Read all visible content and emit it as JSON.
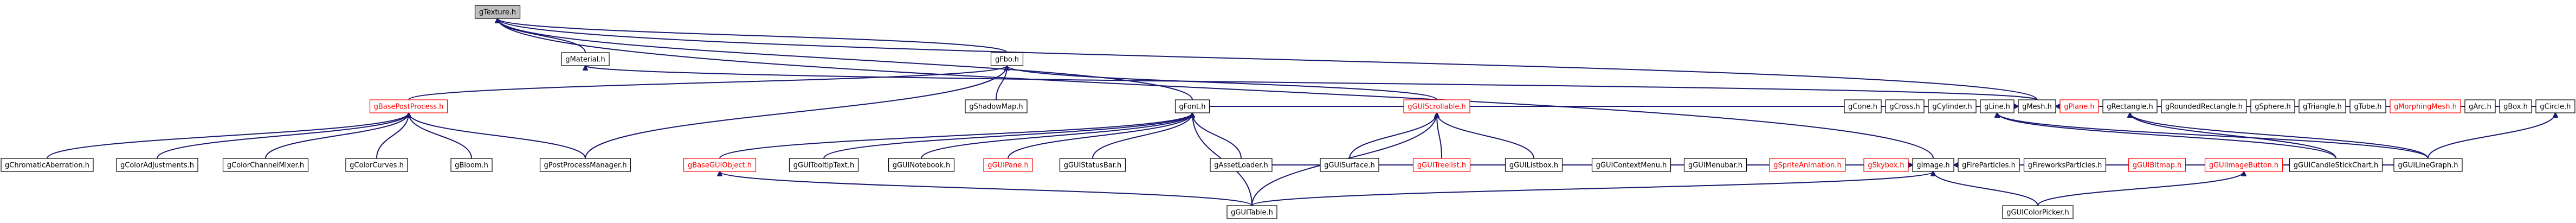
{
  "nodes": [
    {
      "id": "gTexture",
      "label": "gTexture.h",
      "root": true
    },
    {
      "id": "gFbo",
      "label": "gFbo.h"
    },
    {
      "id": "gMaterial",
      "label": "gMaterial.h"
    },
    {
      "id": "gBasePostProcess",
      "label": "gBasePostProcess.h",
      "red": true
    },
    {
      "id": "gShadowMap",
      "label": "gShadowMap.h"
    },
    {
      "id": "gFont",
      "label": "gFont.h"
    },
    {
      "id": "gGUIScrollable",
      "label": "gGUIScrollable.h",
      "red": true
    },
    {
      "id": "gMesh",
      "label": "gMesh.h"
    },
    {
      "id": "gImage",
      "label": "gImage.h"
    },
    {
      "id": "gChromaticAberration",
      "label": "gChromaticAberration.h"
    },
    {
      "id": "gColorAdjustments",
      "label": "gColorAdjustments.h"
    },
    {
      "id": "gColorChannelMixer",
      "label": "gColorChannelMixer.h"
    },
    {
      "id": "gColorCurves",
      "label": "gColorCurves.h"
    },
    {
      "id": "gBloom",
      "label": "gBloom.h"
    },
    {
      "id": "gPostProcessManager",
      "label": "gPostProcessManager.h"
    },
    {
      "id": "gBaseGUIObject",
      "label": "gBaseGUIObject.h",
      "red": true
    },
    {
      "id": "gGUITooltipText",
      "label": "gGUITooltipText.h"
    },
    {
      "id": "gGUINotebook",
      "label": "gGUINotebook.h"
    },
    {
      "id": "gGUIPane",
      "label": "gGUIPane.h",
      "red": true
    },
    {
      "id": "gGUIStatusBar",
      "label": "gGUIStatusBar.h"
    },
    {
      "id": "gAssetLoader",
      "label": "gAssetLoader.h"
    },
    {
      "id": "gGUISurface",
      "label": "gGUISurface.h"
    },
    {
      "id": "gGUITreelist",
      "label": "gGUITreelist.h",
      "red": true
    },
    {
      "id": "gGUIListbox",
      "label": "gGUIListbox.h"
    },
    {
      "id": "gGUIContextMenu",
      "label": "gGUIContextMenu.h"
    },
    {
      "id": "gGUIMenubar",
      "label": "gGUIMenubar.h"
    },
    {
      "id": "gSpriteAnimation",
      "label": "gSpriteAnimation.h",
      "red": true
    },
    {
      "id": "gSkybox",
      "label": "gSkybox.h",
      "red": true
    },
    {
      "id": "gFireParticles",
      "label": "gFireParticles.h"
    },
    {
      "id": "gFireworksParticles",
      "label": "gFireworksParticles.h"
    },
    {
      "id": "gGUIBitmap",
      "label": "gGUIBitmap.h",
      "red": true
    },
    {
      "id": "gGUIImageButton",
      "label": "gGUIImageButton.h",
      "red": true
    },
    {
      "id": "gGUICandleStickChart",
      "label": "gGUICandleStickChart.h"
    },
    {
      "id": "gGUILineGraph",
      "label": "gGUILineGraph.h"
    },
    {
      "id": "gGUITable",
      "label": "gGUITable.h"
    },
    {
      "id": "gGUIColorPicker",
      "label": "gGUIColorPicker.h"
    },
    {
      "id": "gCone",
      "label": "gCone.h"
    },
    {
      "id": "gCross",
      "label": "gCross.h"
    },
    {
      "id": "gCylinder",
      "label": "gCylinder.h"
    },
    {
      "id": "gLine",
      "label": "gLine.h"
    },
    {
      "id": "gPlane",
      "label": "gPlane.h",
      "red": true
    },
    {
      "id": "gRectangle",
      "label": "gRectangle.h"
    },
    {
      "id": "gRoundedRectangle",
      "label": "gRoundedRectangle.h"
    },
    {
      "id": "gSphere",
      "label": "gSphere.h"
    },
    {
      "id": "gTriangle",
      "label": "gTriangle.h"
    },
    {
      "id": "gTube",
      "label": "gTube.h"
    },
    {
      "id": "gMorphingMesh",
      "label": "gMorphingMesh.h",
      "red": true
    },
    {
      "id": "gArc",
      "label": "gArc.h"
    },
    {
      "id": "gBox",
      "label": "gBox.h"
    },
    {
      "id": "gCircle",
      "label": "gCircle.h"
    }
  ],
  "edges": [
    [
      "gTexture",
      "gFbo"
    ],
    [
      "gTexture",
      "gMaterial"
    ],
    [
      "gTexture",
      "gFont"
    ],
    [
      "gTexture",
      "gMesh"
    ],
    [
      "gTexture",
      "gImage"
    ],
    [
      "gFbo",
      "gBasePostProcess"
    ],
    [
      "gFbo",
      "gShadowMap"
    ],
    [
      "gFbo",
      "gPostProcessManager"
    ],
    [
      "gFbo",
      "gGUIScrollable"
    ],
    [
      "gMaterial",
      "gMesh"
    ],
    [
      "gBasePostProcess",
      "gChromaticAberration"
    ],
    [
      "gBasePostProcess",
      "gColorAdjustments"
    ],
    [
      "gBasePostProcess",
      "gColorChannelMixer"
    ],
    [
      "gBasePostProcess",
      "gColorCurves"
    ],
    [
      "gBasePostProcess",
      "gBloom"
    ],
    [
      "gBasePostProcess",
      "gPostProcessManager"
    ],
    [
      "gFont",
      "gBaseGUIObject"
    ],
    [
      "gFont",
      "gGUITooltipText"
    ],
    [
      "gFont",
      "gGUINotebook"
    ],
    [
      "gFont",
      "gGUIPane"
    ],
    [
      "gFont",
      "gGUIStatusBar"
    ],
    [
      "gFont",
      "gAssetLoader"
    ],
    [
      "gFont",
      "gGUITable"
    ],
    [
      "gGUIScrollable",
      "gGUISurface"
    ],
    [
      "gGUIScrollable",
      "gGUITreelist"
    ],
    [
      "gGUIScrollable",
      "gGUIListbox"
    ],
    [
      "gGUIScrollable",
      "gGUITable"
    ],
    [
      "gMesh",
      "gFont"
    ],
    [
      "gMesh",
      "gCone"
    ],
    [
      "gMesh",
      "gCross"
    ],
    [
      "gMesh",
      "gCylinder"
    ],
    [
      "gMesh",
      "gLine"
    ],
    [
      "gMesh",
      "gPlane"
    ],
    [
      "gMesh",
      "gRectangle"
    ],
    [
      "gMesh",
      "gRoundedRectangle"
    ],
    [
      "gMesh",
      "gSphere"
    ],
    [
      "gMesh",
      "gTriangle"
    ],
    [
      "gMesh",
      "gTube"
    ],
    [
      "gMesh",
      "gMorphingMesh"
    ],
    [
      "gMesh",
      "gArc"
    ],
    [
      "gMesh",
      "gBox"
    ],
    [
      "gMesh",
      "gCircle"
    ],
    [
      "gImage",
      "gAssetLoader"
    ],
    [
      "gImage",
      "gGUISurface"
    ],
    [
      "gImage",
      "gGUITreelist"
    ],
    [
      "gImage",
      "gGUIListbox"
    ],
    [
      "gImage",
      "gGUITable"
    ],
    [
      "gImage",
      "gGUIContextMenu"
    ],
    [
      "gImage",
      "gGUIMenubar"
    ],
    [
      "gImage",
      "gSpriteAnimation"
    ],
    [
      "gImage",
      "gSkybox"
    ],
    [
      "gImage",
      "gFireParticles"
    ],
    [
      "gImage",
      "gFireworksParticles"
    ],
    [
      "gImage",
      "gGUIBitmap"
    ],
    [
      "gImage",
      "gGUIImageButton"
    ],
    [
      "gImage",
      "gGUICandleStickChart"
    ],
    [
      "gImage",
      "gGUILineGraph"
    ],
    [
      "gImage",
      "gGUIColorPicker"
    ],
    [
      "gBaseGUIObject",
      "gGUITable"
    ],
    [
      "gGUIImageButton",
      "gGUIColorPicker"
    ],
    [
      "gLine",
      "gGUICandleStickChart"
    ],
    [
      "gLine",
      "gGUILineGraph"
    ],
    [
      "gRectangle",
      "gGUICandleStickChart"
    ],
    [
      "gRectangle",
      "gGUILineGraph"
    ],
    [
      "gCircle",
      "gGUILineGraph"
    ]
  ]
}
